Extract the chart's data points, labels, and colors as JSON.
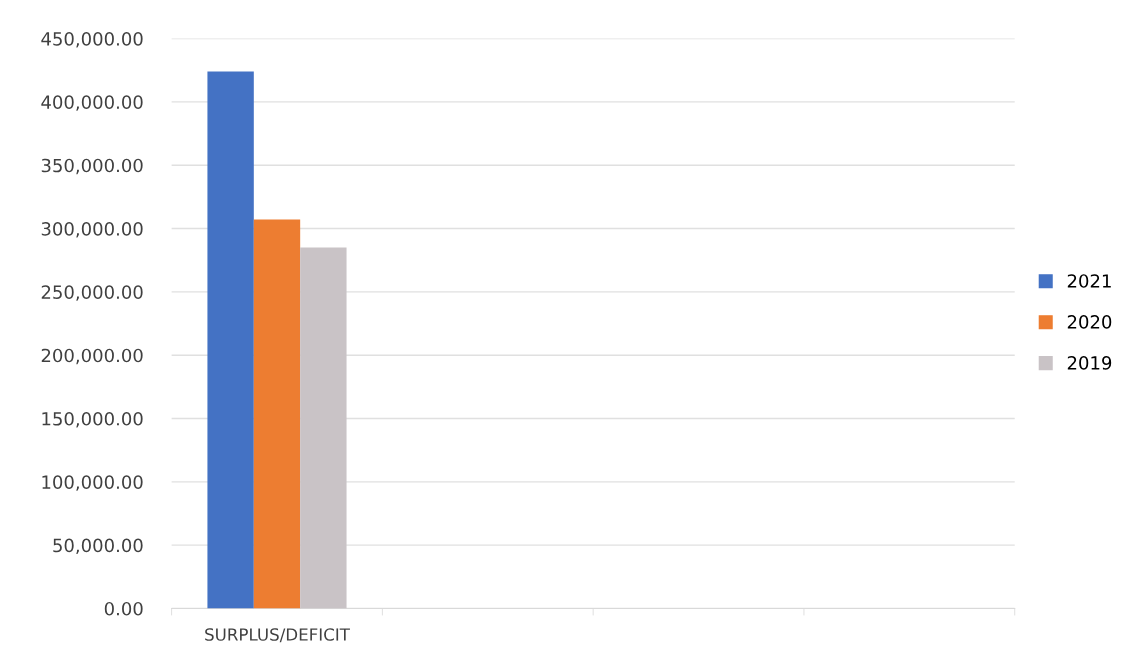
{
  "chart_data": {
    "type": "bar",
    "categories": [
      "SURPLUS/DEFICIT",
      null,
      null,
      null
    ],
    "series": [
      {
        "name": "2021",
        "color": "#4472c4",
        "values": [
          424000,
          null,
          null,
          null
        ]
      },
      {
        "name": "2020",
        "color": "#ed7d31",
        "values": [
          307200,
          null,
          null,
          null
        ]
      },
      {
        "name": "2019",
        "color": "#c9c3c6",
        "values": [
          285000,
          null,
          null,
          null
        ]
      }
    ],
    "ylim": [
      0,
      450000
    ],
    "yticks": [
      {
        "value": 0,
        "label": "0.00"
      },
      {
        "value": 50000,
        "label": "50,000.00"
      },
      {
        "value": 100000,
        "label": "100,000.00"
      },
      {
        "value": 150000,
        "label": "150,000.00"
      },
      {
        "value": 200000,
        "label": "200,000.00"
      },
      {
        "value": 250000,
        "label": "250,000.00"
      },
      {
        "value": 300000,
        "label": "300,000.00"
      },
      {
        "value": 350000,
        "label": "350,000.00"
      },
      {
        "value": 400000,
        "label": "400,000.00"
      },
      {
        "value": 450000,
        "label": "450,000.00"
      }
    ],
    "grid": "y",
    "legend": "right"
  }
}
